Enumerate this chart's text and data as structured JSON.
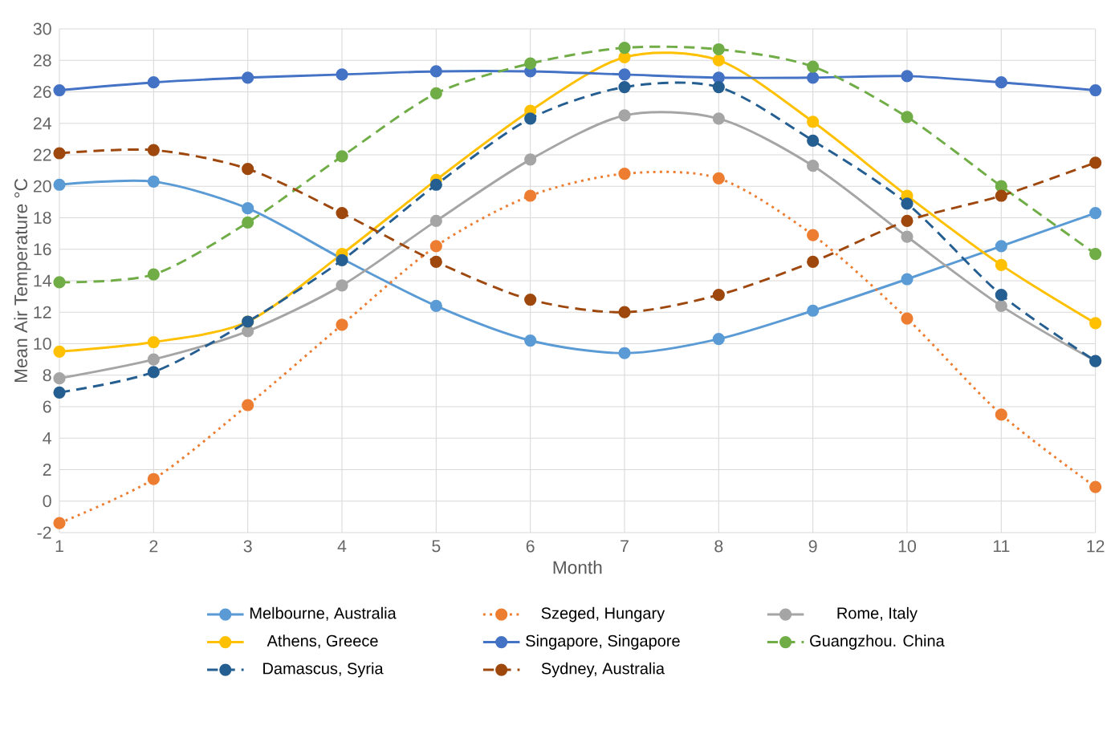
{
  "chart_data": {
    "type": "line",
    "xlabel": "Month",
    "ylabel": "Mean Air Temperature °C",
    "x": [
      1,
      2,
      3,
      4,
      5,
      6,
      7,
      8,
      9,
      10,
      11,
      12
    ],
    "xlim": [
      1,
      12
    ],
    "xticks": [
      1,
      2,
      3,
      4,
      5,
      6,
      7,
      8,
      9,
      10,
      11,
      12
    ],
    "ylim": [
      -2,
      30
    ],
    "yticks": [
      -2,
      0,
      2,
      4,
      6,
      8,
      10,
      12,
      14,
      16,
      18,
      20,
      22,
      24,
      26,
      28,
      30
    ],
    "grid": true,
    "legend": "bottom",
    "marker": "circle",
    "series": [
      {
        "name": "Melbourne, Australia",
        "color": "#5b9bd5",
        "line_style": "solid",
        "values": [
          20.1,
          20.3,
          18.6,
          15.4,
          12.4,
          10.2,
          9.4,
          10.3,
          12.1,
          14.1,
          16.2,
          18.3
        ]
      },
      {
        "name": "Szeged, Hungary",
        "color": "#ed7d31",
        "line_style": "dotted",
        "values": [
          -1.4,
          1.4,
          6.1,
          11.2,
          16.2,
          19.4,
          20.8,
          20.5,
          16.9,
          11.6,
          5.5,
          0.9
        ]
      },
      {
        "name": "Rome, Italy",
        "color": "#a5a5a5",
        "line_style": "solid",
        "values": [
          7.8,
          9.0,
          10.8,
          13.7,
          17.8,
          21.7,
          24.5,
          24.3,
          21.3,
          16.8,
          12.4,
          8.9
        ]
      },
      {
        "name": "Athens, Greece",
        "color": "#ffc000",
        "line_style": "solid",
        "values": [
          9.5,
          10.1,
          11.4,
          15.7,
          20.4,
          24.8,
          28.2,
          28.0,
          24.1,
          19.4,
          15.0,
          11.3
        ]
      },
      {
        "name": "Singapore, Singapore",
        "color": "#4472c4",
        "line_style": "solid",
        "values": [
          26.1,
          26.6,
          26.9,
          27.1,
          27.3,
          27.3,
          27.1,
          26.9,
          26.9,
          27.0,
          26.6,
          26.1
        ]
      },
      {
        "name": "Guangzhou. China",
        "color": "#70ad47",
        "line_style": "dashed",
        "values": [
          13.9,
          14.4,
          17.7,
          21.9,
          25.9,
          27.8,
          28.8,
          28.7,
          27.6,
          24.4,
          20.0,
          15.7
        ]
      },
      {
        "name": "Damascus, Syria",
        "color": "#255e91",
        "line_style": "dashed",
        "values": [
          6.9,
          8.2,
          11.4,
          15.3,
          20.1,
          24.3,
          26.3,
          26.3,
          22.9,
          18.9,
          13.1,
          8.9
        ]
      },
      {
        "name": "Sydney, Australia",
        "color": "#9e480e",
        "line_style": "dashed",
        "values": [
          22.1,
          22.3,
          21.1,
          18.3,
          15.2,
          12.8,
          12.0,
          13.1,
          15.2,
          17.8,
          19.4,
          21.5
        ]
      }
    ]
  }
}
